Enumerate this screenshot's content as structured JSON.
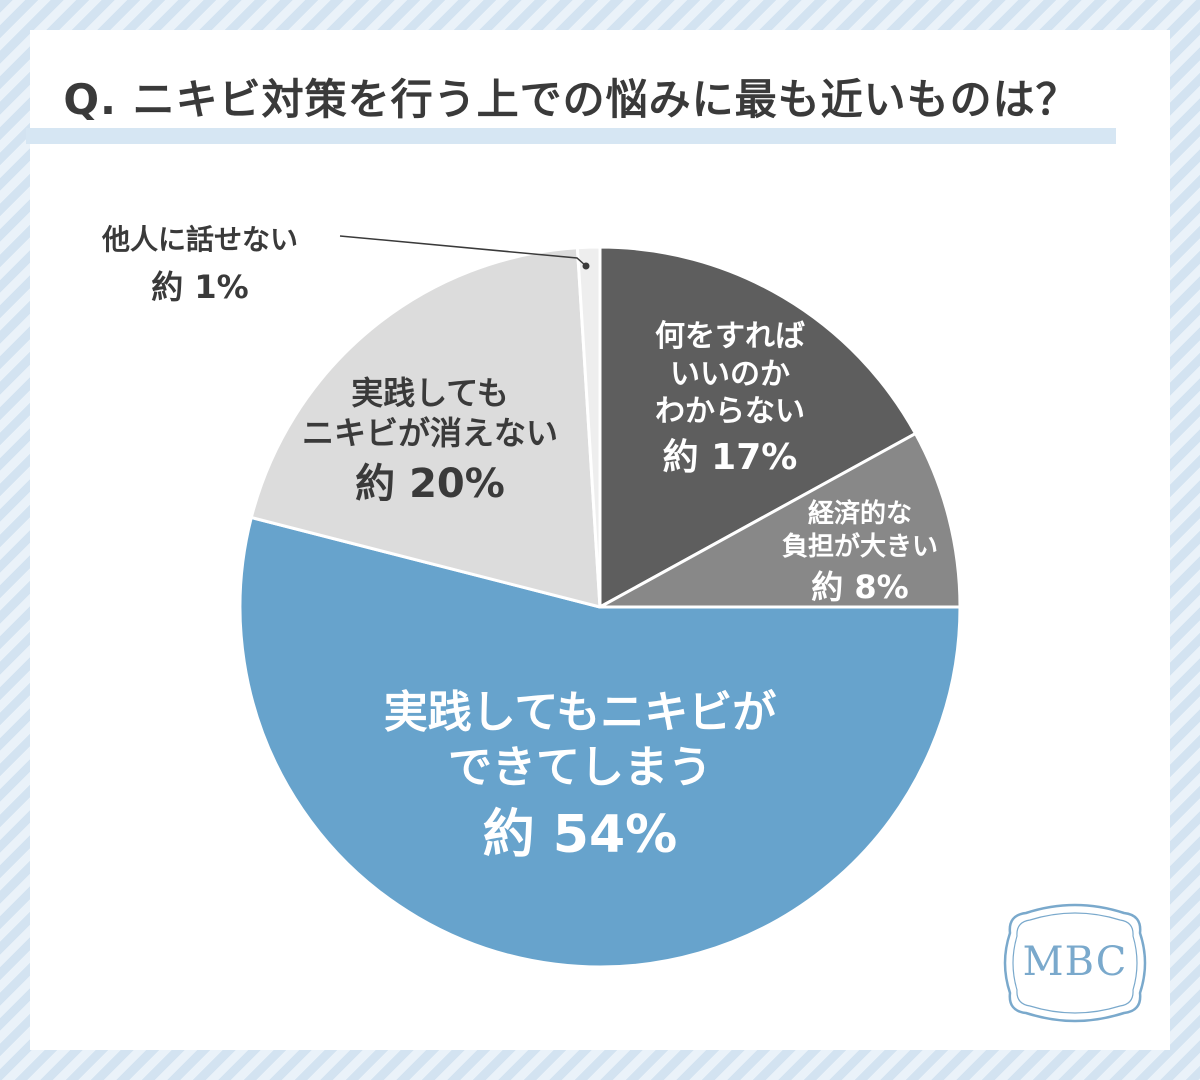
{
  "title": "Q. ニキビ対策を行う上での悩みに最も近いものは？",
  "colors": {
    "slice_54": "#67a3cc",
    "slice_17": "#5e5e5e",
    "slice_8": "#888888",
    "slice_20": "#dcdcdc",
    "slice_1": "#eeeeee",
    "text_dark": "#3a3a3a",
    "logo": "#7aa9cc"
  },
  "chart_data": {
    "type": "pie",
    "slices": [
      {
        "name": "何をすればいいのかわからない",
        "value": 17,
        "lines": [
          "何をすれば",
          "いいのか",
          "わからない"
        ],
        "pct_label": "約 17%"
      },
      {
        "name": "経済的な負担が大きい",
        "value": 8,
        "lines": [
          "経済的な",
          "負担が大きい"
        ],
        "pct_label": "約 8%"
      },
      {
        "name": "実践してもニキビができてしまう",
        "value": 54,
        "lines": [
          "実践してもニキビが",
          "できてしまう"
        ],
        "pct_label": "約 54%"
      },
      {
        "name": "実践してもニキビが消えない",
        "value": 20,
        "lines": [
          "実践しても",
          "ニキビが消えない"
        ],
        "pct_label": "約 20%"
      },
      {
        "name": "他人に話せない",
        "value": 1,
        "lines": [
          "他人に話せない"
        ],
        "pct_label": "約 1%"
      }
    ]
  },
  "logo_text": "MBC"
}
